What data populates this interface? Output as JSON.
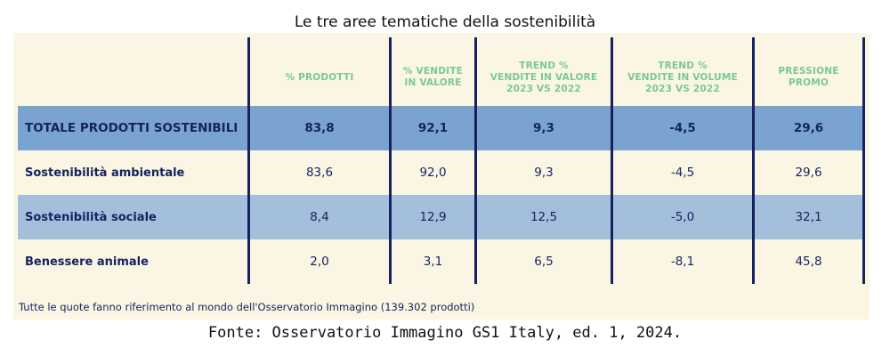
{
  "title": "Le tre aree tematiche della sostenibilità",
  "source": "Fonte: Osservatorio Immagino GS1 Italy, ed. 1, 2024.",
  "footnote": "Tutte le quote fanno riferimento al mondo dell'Osservatorio Immagino (139.302 prodotti)",
  "colors": {
    "header_text": "#79c79a",
    "navy": "#15225e",
    "panel_bg": "#fbf6e4",
    "total_row_bg": "#7aa4cf",
    "social_row_bg": "#a4bfdc"
  },
  "chart_data": {
    "type": "table",
    "columns": [
      [
        "% PRODOTTI"
      ],
      [
        "% VENDITE",
        "IN VALORE"
      ],
      [
        "TREND %",
        "VENDITE IN VALORE",
        "2023 VS 2022"
      ],
      [
        "TREND %",
        "VENDITE IN VOLUME",
        "2023 VS 2022"
      ],
      [
        "PRESSIONE",
        "PROMO"
      ]
    ],
    "rows": [
      {
        "label": "TOTALE PRODOTTI SOSTENIBILI",
        "values": [
          "83,8",
          "92,1",
          "9,3",
          "-4,5",
          "29,6"
        ]
      },
      {
        "label": "Sostenibilità ambientale",
        "values": [
          "83,6",
          "92,0",
          "9,3",
          "-4,5",
          "29,6"
        ]
      },
      {
        "label": "Sostenibilità sociale",
        "values": [
          "8,4",
          "12,9",
          "12,5",
          "-5,0",
          "32,1"
        ]
      },
      {
        "label": "Benessere animale",
        "values": [
          "2,0",
          "3,1",
          "6,5",
          "-8,1",
          "45,8"
        ]
      }
    ]
  }
}
